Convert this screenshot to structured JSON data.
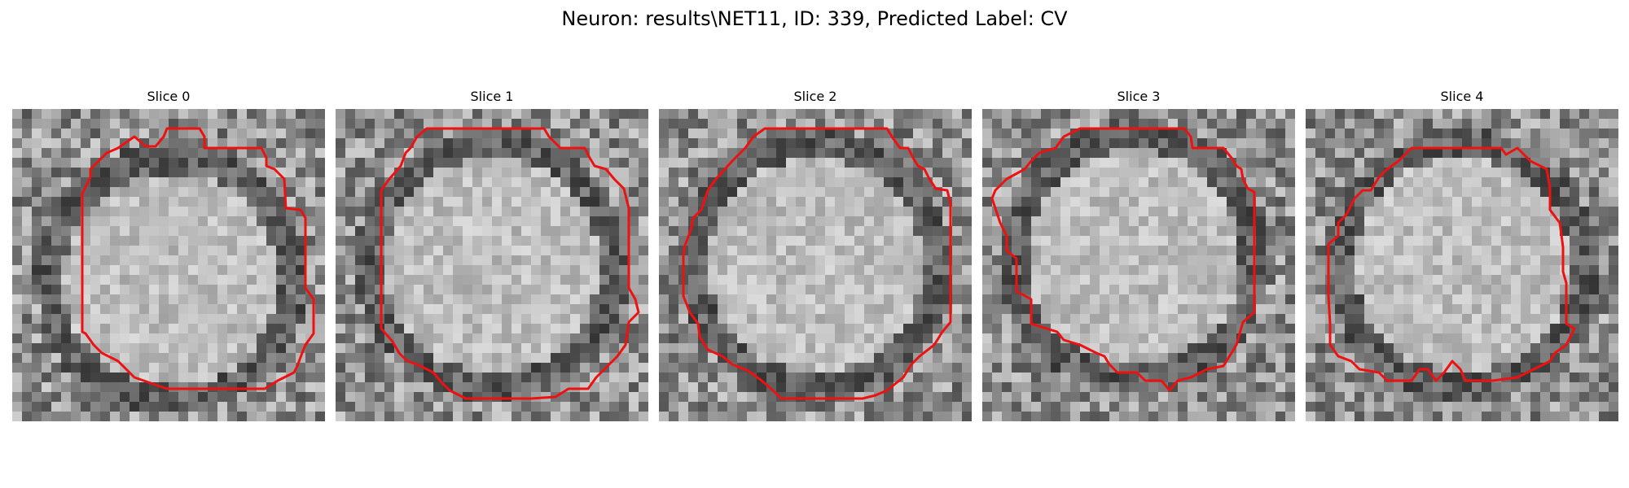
{
  "figure": {
    "title": "Neuron: results\\NET11, ID: 339, Predicted Label: CV"
  },
  "panels": [
    {
      "title": "Slice 0"
    },
    {
      "title": "Slice 1"
    },
    {
      "title": "Slice 2"
    },
    {
      "title": "Slice 3"
    },
    {
      "title": "Slice 4"
    }
  ],
  "style": {
    "contour_color": "#ee1111",
    "colormap": "grayscale"
  }
}
